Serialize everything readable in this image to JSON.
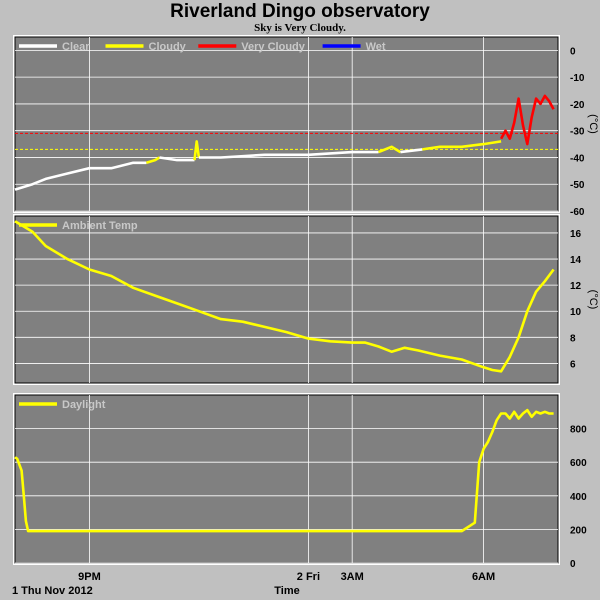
{
  "header": {
    "title": "Riverland Dingo observatory",
    "subtitle": "Sky is Very Cloudy."
  },
  "footer": {
    "date_label": "1 Thu Nov 2012",
    "time_label": "Time"
  },
  "colors": {
    "background": "#c0c0c0",
    "plot_bg": "#808080",
    "grid": "#ffffff",
    "clear": "#ffffff",
    "cloudy": "#ffff00",
    "very_cloudy": "#ff0000",
    "wet": "#0000ff"
  },
  "chart_data": [
    {
      "type": "line",
      "ylabel": "(°C)",
      "ylim": [
        -60,
        5
      ],
      "yticks": [
        0,
        -10,
        -20,
        -30,
        -40,
        -50,
        -60
      ],
      "xlim": [
        19.3,
        31.7
      ],
      "xticks": [
        21,
        26,
        27,
        30
      ],
      "xtick_labels": [
        "9PM",
        "2 Fri",
        "3AM",
        "6AM"
      ],
      "grid": true,
      "legend_position": "top-left",
      "thresholds": [
        {
          "value": -31,
          "color": "#ff0000"
        },
        {
          "value": -37,
          "color": "#ffff00"
        }
      ],
      "series": [
        {
          "name": "Clear",
          "color": "#ffffff",
          "x": [
            19.3,
            19.7,
            20.0,
            20.5,
            21.0,
            21.5,
            22.0,
            22.3
          ],
          "y": [
            -52,
            -50,
            -48,
            -46,
            -44,
            -44,
            -42,
            -42
          ]
        },
        {
          "name": "Cloudy",
          "color": "#ffff00",
          "x": [
            22.3,
            22.5,
            22.6
          ],
          "y": [
            -42,
            -41,
            -40
          ]
        },
        {
          "name": "Clear",
          "color": "#ffffff",
          "x": [
            22.6,
            23.0,
            23.4
          ],
          "y": [
            -40,
            -41,
            -41
          ]
        },
        {
          "name": "Cloudy",
          "color": "#ffff00",
          "x": [
            23.4,
            23.45,
            23.5
          ],
          "y": [
            -41,
            -34,
            -40
          ]
        },
        {
          "name": "Clear",
          "color": "#ffffff",
          "x": [
            23.5,
            24.0,
            25.0,
            26.0,
            27.0,
            27.6
          ],
          "y": [
            -40,
            -40,
            -39,
            -39,
            -38,
            -38
          ]
        },
        {
          "name": "Cloudy",
          "color": "#ffff00",
          "x": [
            27.6,
            27.9,
            28.1
          ],
          "y": [
            -38,
            -36,
            -38
          ]
        },
        {
          "name": "Clear",
          "color": "#ffffff",
          "x": [
            28.1,
            28.6
          ],
          "y": [
            -38,
            -37
          ]
        },
        {
          "name": "Cloudy",
          "color": "#ffff00",
          "x": [
            28.6,
            29.0,
            29.5,
            30.0,
            30.4
          ],
          "y": [
            -37,
            -36,
            -36,
            -35,
            -34
          ]
        },
        {
          "name": "Very Cloudy",
          "color": "#ff0000",
          "x": [
            30.4,
            30.5,
            30.6,
            30.7,
            30.8,
            30.9,
            31.0,
            31.1,
            31.2,
            31.3,
            31.4,
            31.5,
            31.6
          ],
          "y": [
            -33,
            -30,
            -33,
            -27,
            -18,
            -28,
            -35,
            -25,
            -18,
            -20,
            -17,
            -19,
            -22
          ]
        }
      ],
      "legend": [
        {
          "name": "Clear",
          "color": "#ffffff"
        },
        {
          "name": "Cloudy",
          "color": "#ffff00"
        },
        {
          "name": "Very Cloudy",
          "color": "#ff0000"
        },
        {
          "name": "Wet",
          "color": "#0000ff"
        }
      ]
    },
    {
      "type": "line",
      "ylabel": "(°C)",
      "ylim": [
        4.5,
        17.3
      ],
      "yticks": [
        6,
        8,
        10,
        12,
        14,
        16
      ],
      "xlim": [
        19.3,
        31.7
      ],
      "grid": true,
      "legend_position": "top-left",
      "series": [
        {
          "name": "Ambient Temp",
          "color": "#ffff00",
          "x": [
            19.3,
            19.7,
            20.0,
            20.5,
            21.0,
            21.5,
            22.0,
            22.5,
            23.0,
            23.5,
            24.0,
            24.5,
            25.0,
            25.5,
            26.0,
            26.5,
            27.0,
            27.3,
            27.6,
            27.9,
            28.2,
            28.5,
            29.0,
            29.5,
            30.0,
            30.2,
            30.4,
            30.6,
            30.8,
            31.0,
            31.2,
            31.4,
            31.6
          ],
          "y": [
            16.9,
            16.1,
            15.0,
            14.0,
            13.2,
            12.7,
            11.8,
            11.2,
            10.6,
            10.0,
            9.4,
            9.2,
            8.8,
            8.4,
            7.9,
            7.7,
            7.6,
            7.6,
            7.3,
            6.9,
            7.2,
            7.0,
            6.6,
            6.3,
            5.7,
            5.5,
            5.4,
            6.5,
            8.0,
            10.0,
            11.5,
            12.3,
            13.2
          ]
        }
      ],
      "legend": [
        {
          "name": "Ambient Temp",
          "color": "#ffff00"
        }
      ]
    },
    {
      "type": "line",
      "ylim": [
        0,
        1000
      ],
      "yticks": [
        0,
        200,
        400,
        600,
        800
      ],
      "xlim": [
        19.3,
        31.7
      ],
      "grid": true,
      "legend_position": "top-left",
      "series": [
        {
          "name": "Daylight",
          "color": "#ffff00",
          "x": [
            19.3,
            19.35,
            19.45,
            19.5,
            19.55,
            19.6,
            19.7,
            20.0,
            22.0,
            24.0,
            26.0,
            28.0,
            29.5,
            29.8,
            29.9,
            30.0,
            30.1,
            30.2,
            30.3,
            30.4,
            30.5,
            30.6,
            30.7,
            30.8,
            30.9,
            31.0,
            31.1,
            31.2,
            31.3,
            31.4,
            31.5,
            31.6
          ],
          "y": [
            630,
            620,
            550,
            400,
            250,
            190,
            190,
            190,
            190,
            190,
            190,
            190,
            190,
            240,
            600,
            680,
            720,
            780,
            850,
            890,
            890,
            860,
            900,
            860,
            890,
            910,
            870,
            900,
            890,
            900,
            890,
            890
          ]
        }
      ],
      "legend": [
        {
          "name": "Daylight",
          "color": "#ffff00"
        }
      ]
    }
  ]
}
